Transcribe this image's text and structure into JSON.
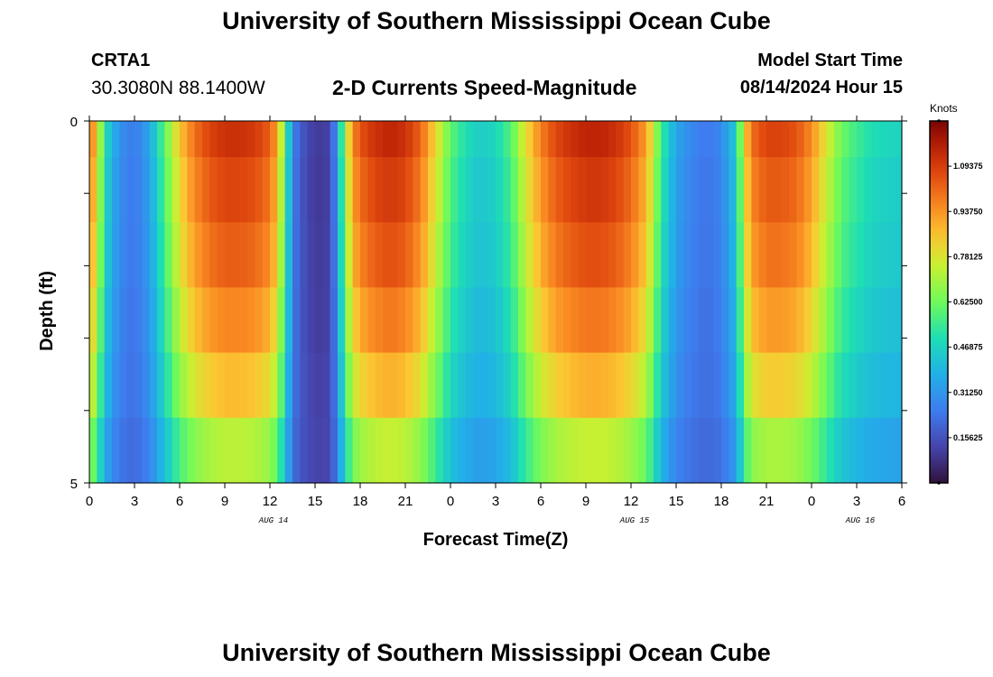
{
  "page": {
    "title": "University of Southern Mississippi Ocean Cube",
    "station": "CRTA1",
    "coords": "30.3080N  88.1400W",
    "start_label": "Model Start Time",
    "start_value": "08/14/2024 Hour 15",
    "bottom_title": "University of Southern Mississippi Ocean Cube"
  },
  "chart_data": {
    "type": "heatmap",
    "title": "2-D Currents Speed-Magnitude",
    "xlabel": "Forecast Time(Z)",
    "ylabel": "Depth (ft)",
    "x_range": [
      0,
      54
    ],
    "y_range": [
      0,
      5
    ],
    "x_ticks": [
      0,
      3,
      6,
      9,
      12,
      15,
      18,
      21,
      24,
      27,
      30,
      33,
      36,
      39,
      42,
      45,
      48,
      51,
      54
    ],
    "x_tick_labels": [
      "0",
      "3",
      "6",
      "9",
      "12",
      "15",
      "18",
      "21",
      "0",
      "3",
      "6",
      "9",
      "12",
      "15",
      "18",
      "21",
      "0",
      "3",
      "6"
    ],
    "y_ticks": [
      0,
      5
    ],
    "y_tick_labels": [
      "0",
      "5"
    ],
    "date_labels": [
      {
        "text": "AUG 14",
        "x": 12
      },
      {
        "text": "AUG 15",
        "x": 36
      },
      {
        "text": "AUG 16",
        "x": 51
      }
    ],
    "depth_layers": 5,
    "top_band_fraction": 0.1,
    "colorbar": {
      "unit": "Knots",
      "min": 0,
      "max": 1.25,
      "ticks": [
        0.15625,
        0.3125,
        0.46875,
        0.625,
        0.78125,
        0.9375,
        1.09375
      ],
      "tick_labels": [
        "0.15625",
        "0.31250",
        "0.46875",
        "0.62500",
        "0.78125",
        "0.93750",
        "1.09375"
      ]
    },
    "time_speed_knots": [
      [
        0,
        1.0
      ],
      [
        0.5,
        0.85
      ],
      [
        1,
        0.5
      ],
      [
        2,
        0.3
      ],
      [
        3,
        0.25
      ],
      [
        4,
        0.35
      ],
      [
        5,
        0.6
      ],
      [
        6,
        0.85
      ],
      [
        7,
        1.0
      ],
      [
        8,
        1.08
      ],
      [
        9,
        1.12
      ],
      [
        10,
        1.12
      ],
      [
        11,
        1.1
      ],
      [
        12,
        1.03
      ],
      [
        12.5,
        0.9
      ],
      [
        13,
        0.6
      ],
      [
        13.5,
        0.28
      ],
      [
        14,
        0.18
      ],
      [
        15,
        0.1
      ],
      [
        16,
        0.12
      ],
      [
        16.5,
        0.35
      ],
      [
        17,
        0.7
      ],
      [
        17.5,
        0.95
      ],
      [
        18,
        1.05
      ],
      [
        19,
        1.12
      ],
      [
        20,
        1.15
      ],
      [
        21,
        1.12
      ],
      [
        22,
        1.02
      ],
      [
        23,
        0.82
      ],
      [
        24,
        0.6
      ],
      [
        25,
        0.5
      ],
      [
        26,
        0.45
      ],
      [
        27,
        0.48
      ],
      [
        28,
        0.58
      ],
      [
        29,
        0.8
      ],
      [
        30,
        0.97
      ],
      [
        31,
        1.07
      ],
      [
        32,
        1.12
      ],
      [
        33,
        1.15
      ],
      [
        34,
        1.15
      ],
      [
        35,
        1.12
      ],
      [
        36,
        1.05
      ],
      [
        37,
        0.92
      ],
      [
        37.5,
        0.75
      ],
      [
        38,
        0.55
      ],
      [
        39,
        0.35
      ],
      [
        40,
        0.28
      ],
      [
        41,
        0.24
      ],
      [
        42,
        0.28
      ],
      [
        43,
        0.45
      ],
      [
        43.5,
        0.8
      ],
      [
        44,
        1.0
      ],
      [
        45,
        1.08
      ],
      [
        46,
        1.08
      ],
      [
        47,
        1.05
      ],
      [
        48,
        0.95
      ],
      [
        49,
        0.78
      ],
      [
        50,
        0.62
      ],
      [
        51,
        0.55
      ],
      [
        52,
        0.5
      ],
      [
        53,
        0.48
      ],
      [
        54,
        0.47
      ]
    ],
    "layer_factors": [
      {
        "scale": 1.0,
        "bias": 0.0
      },
      {
        "scale": 0.96,
        "bias": 0.0
      },
      {
        "scale": 0.91,
        "bias": 0.01
      },
      {
        "scale": 0.84,
        "bias": 0.02
      },
      {
        "scale": 0.74,
        "bias": 0.04
      },
      {
        "scale": 0.6,
        "bias": 0.06
      }
    ]
  }
}
